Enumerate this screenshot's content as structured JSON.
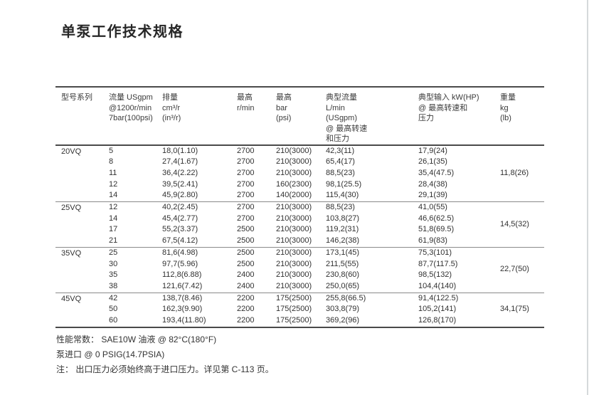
{
  "title": "单泵工作技术规格",
  "table": {
    "columns": [
      {
        "id": "model",
        "lines": [
          "型号系列"
        ]
      },
      {
        "id": "flow",
        "lines": [
          "流量 USgpm",
          "@1200r/min",
          "7bar(100psi)"
        ]
      },
      {
        "id": "displacement",
        "lines": [
          "排量",
          "cm³/r",
          "(in³/r)"
        ]
      },
      {
        "id": "max-speed",
        "lines": [
          "最高",
          "r/min"
        ]
      },
      {
        "id": "max-pressure",
        "lines": [
          "最高",
          "bar",
          "(psi)"
        ]
      },
      {
        "id": "typical-flow",
        "lines": [
          "典型流量",
          "L/min",
          "(USgpm)",
          "@ 最高转速",
          "和压力"
        ]
      },
      {
        "id": "typical-input",
        "lines": [
          "典型输入 kW(HP)",
          "@ 最高转速和",
          "压力"
        ]
      },
      {
        "id": "weight",
        "lines": [
          "重量",
          "kg",
          "(lb)"
        ]
      }
    ],
    "sections": [
      {
        "model": "20VQ",
        "weight": "11,8(26)",
        "rows": [
          [
            "5",
            "18,0(1.10)",
            "2700",
            "210(3000)",
            "42,3(11)",
            "17,9(24)"
          ],
          [
            "8",
            "27,4(1.67)",
            "2700",
            "210(3000)",
            "65,4(17)",
            "26,1(35)"
          ],
          [
            "11",
            "36,4(2.22)",
            "2700",
            "210(3000)",
            "88,5(23)",
            "35,4(47.5)"
          ],
          [
            "12",
            "39,5(2.41)",
            "2700",
            "160(2300)",
            "98,1(25.5)",
            "28,4(38)"
          ],
          [
            "14",
            "45,9(2.80)",
            "2700",
            "140(2000)",
            "115,4(30)",
            "29,1(39)"
          ]
        ]
      },
      {
        "model": "25VQ",
        "weight": "14,5(32)",
        "rows": [
          [
            "12",
            "40,2(2.45)",
            "2700",
            "210(3000)",
            "88,5(23)",
            "41,0(55)"
          ],
          [
            "14",
            "45,4(2.77)",
            "2700",
            "210(3000)",
            "103,8(27)",
            "46,6(62.5)"
          ],
          [
            "17",
            "55,2(3.37)",
            "2500",
            "210(3000)",
            "119,2(31)",
            "51,8(69.5)"
          ],
          [
            "21",
            "67,5(4.12)",
            "2500",
            "210(3000)",
            "146,2(38)",
            "61,9(83)"
          ]
        ]
      },
      {
        "model": "35VQ",
        "weight": "22,7(50)",
        "rows": [
          [
            "25",
            "81,6(4.98)",
            "2500",
            "210(3000)",
            "173,1(45)",
            "75,3(101)"
          ],
          [
            "30",
            "97,7(5.96)",
            "2500",
            "210(3000)",
            "211,5(55)",
            "87,7(117.5)"
          ],
          [
            "35",
            "112,8(6.88)",
            "2400",
            "210(3000)",
            "230,8(60)",
            "98,5(132)"
          ],
          [
            "38",
            "121,6(7.42)",
            "2400",
            "210(3000)",
            "250,0(65)",
            "104,4(140)"
          ]
        ]
      },
      {
        "model": "45VQ",
        "weight": "34,1(75)",
        "rows": [
          [
            "42",
            "138,7(8.46)",
            "2200",
            "175(2500)",
            "255,8(66.5)",
            "91,4(122.5)"
          ],
          [
            "50",
            "162,3(9.90)",
            "2200",
            "175(2500)",
            "303,8(79)",
            "105,2(141)"
          ],
          [
            "60",
            "193,4(11.80)",
            "2200",
            "175(2500)",
            "369,2(96)",
            "126,8(170)"
          ]
        ]
      }
    ]
  },
  "notes": [
    "性能常数： SAE10W 油液 @ 82°C(180°F)",
    "泵进口 @ 0 PSIG(14.7PSIA)",
    "注： 出口压力必须始终高于进口压力。详见第 C-113 页。"
  ]
}
